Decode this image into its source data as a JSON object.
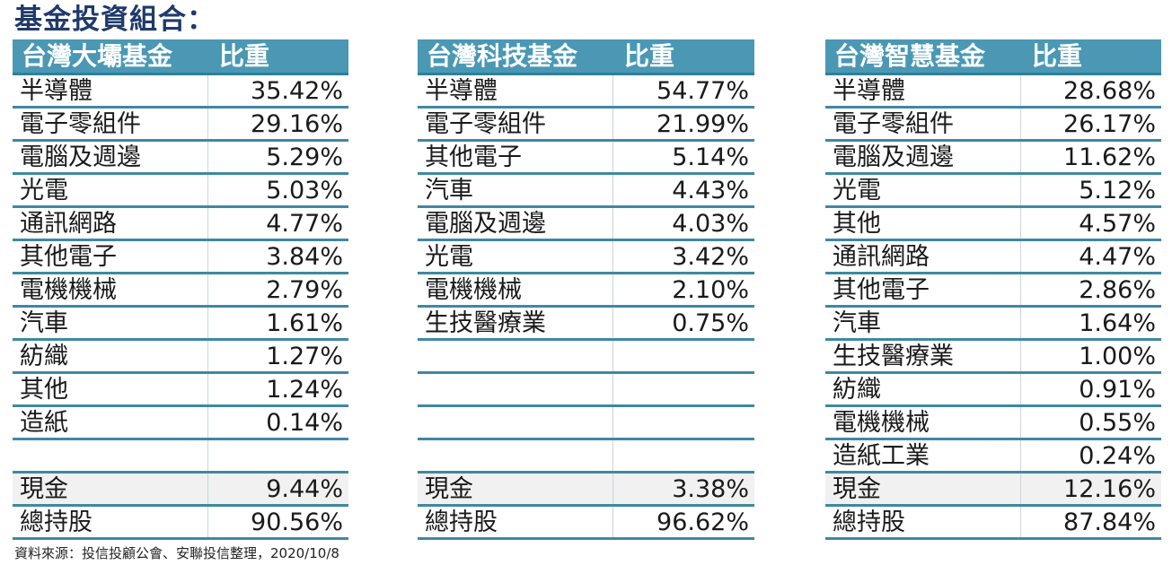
{
  "title": "基金投資組合：",
  "tables": [
    {
      "fund_name": "台灣大壩基金",
      "weight_header": "比重",
      "rows": [
        {
          "name": "半導體",
          "weight": "35.42%"
        },
        {
          "name": "電子零組件",
          "weight": "29.16%"
        },
        {
          "name": "電腦及週邊",
          "weight": "5.29%"
        },
        {
          "name": "光電",
          "weight": "5.03%"
        },
        {
          "name": "通訊網路",
          "weight": "4.77%"
        },
        {
          "name": "其他電子",
          "weight": "3.84%"
        },
        {
          "name": "電機機械",
          "weight": "2.79%"
        },
        {
          "name": "汽車",
          "weight": "1.61%"
        },
        {
          "name": "紡織",
          "weight": "1.27%"
        },
        {
          "name": "其他",
          "weight": "1.24%"
        },
        {
          "name": "造紙",
          "weight": "0.14%"
        },
        {
          "name": "",
          "weight": ""
        }
      ],
      "cash_label": "現金",
      "cash": "9.44%",
      "total_label": "總持股",
      "total": "90.56%"
    },
    {
      "fund_name": "台灣科技基金",
      "weight_header": "比重",
      "rows": [
        {
          "name": "半導體",
          "weight": "54.77%"
        },
        {
          "name": "電子零組件",
          "weight": "21.99%"
        },
        {
          "name": "其他電子",
          "weight": "5.14%"
        },
        {
          "name": "汽車",
          "weight": "4.43%"
        },
        {
          "name": "電腦及週邊",
          "weight": "4.03%"
        },
        {
          "name": "光電",
          "weight": "3.42%"
        },
        {
          "name": "電機機械",
          "weight": "2.10%"
        },
        {
          "name": "生技醫療業",
          "weight": "0.75%"
        },
        {
          "name": "",
          "weight": ""
        },
        {
          "name": "",
          "weight": ""
        },
        {
          "name": "",
          "weight": ""
        },
        {
          "name": "",
          "weight": ""
        }
      ],
      "cash_label": "現金",
      "cash": "3.38%",
      "total_label": "總持股",
      "total": "96.62%"
    },
    {
      "fund_name": "台灣智慧基金",
      "weight_header": "比重",
      "rows": [
        {
          "name": "半導體",
          "weight": "28.68%"
        },
        {
          "name": "電子零組件",
          "weight": "26.17%"
        },
        {
          "name": "電腦及週邊",
          "weight": "11.62%"
        },
        {
          "name": "光電",
          "weight": "5.12%"
        },
        {
          "name": "其他",
          "weight": "4.57%"
        },
        {
          "name": "通訊網路",
          "weight": "4.47%"
        },
        {
          "name": "其他電子",
          "weight": "2.86%"
        },
        {
          "name": "汽車",
          "weight": "1.64%"
        },
        {
          "name": "生技醫療業",
          "weight": "1.00%"
        },
        {
          "name": "紡織",
          "weight": "0.91%"
        },
        {
          "name": "電機機械",
          "weight": "0.55%"
        },
        {
          "name": "造紙工業",
          "weight": "0.24%"
        }
      ],
      "cash_label": "現金",
      "cash": "12.16%",
      "total_label": "總持股",
      "total": "87.84%"
    }
  ],
  "source": "資料來源：投信投顧公會、安聯投信整理，2020/10/8"
}
